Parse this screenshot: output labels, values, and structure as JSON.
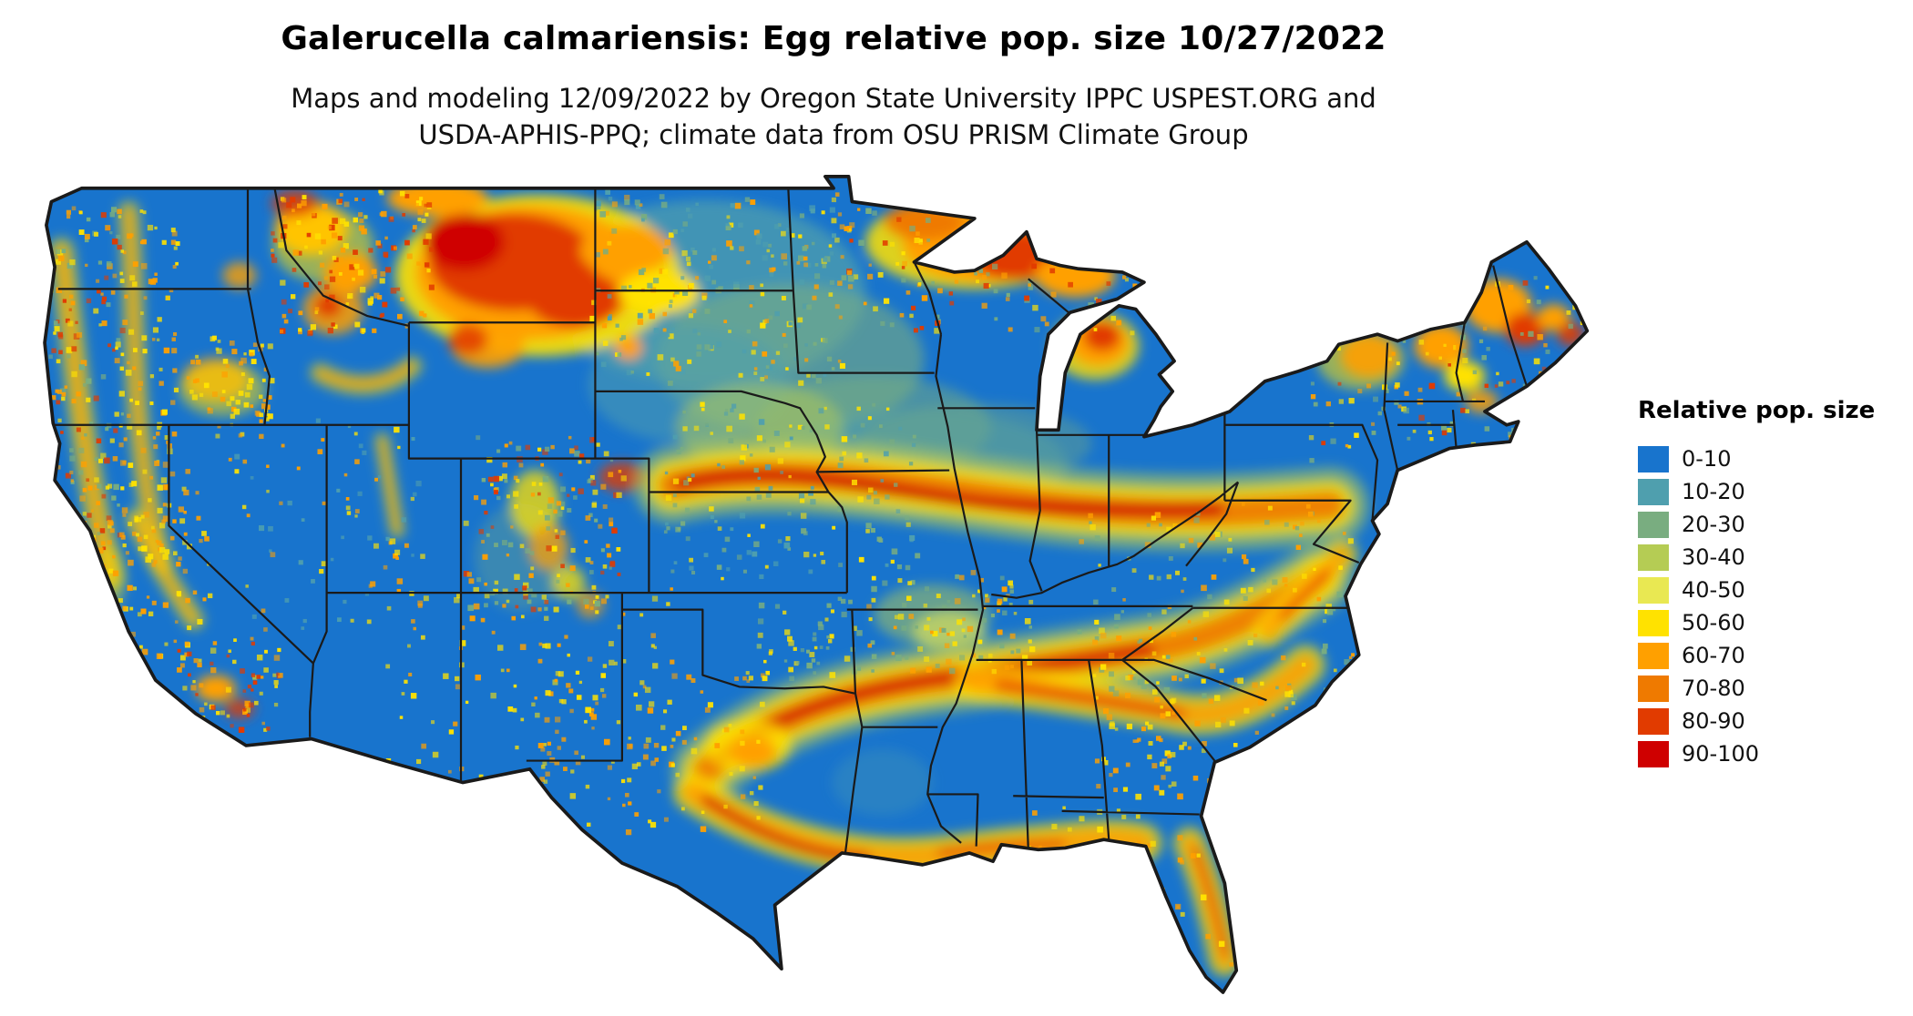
{
  "header": {
    "title": "Galerucella calmariensis: Egg relative pop. size 10/27/2022",
    "subtitle_line1": "Maps and modeling 12/09/2022 by Oregon State University IPPC USPEST.ORG and",
    "subtitle_line2": "USDA-APHIS-PPQ; climate data from OSU PRISM Climate Group"
  },
  "legend": {
    "title": "Relative pop. size",
    "items": [
      {
        "label": "0-10",
        "color": "#1874CD"
      },
      {
        "label": "10-20",
        "color": "#4F9FAE"
      },
      {
        "label": "20-30",
        "color": "#79AD80"
      },
      {
        "label": "30-40",
        "color": "#B5CC54"
      },
      {
        "label": "40-50",
        "color": "#E9E852"
      },
      {
        "label": "50-60",
        "color": "#FFE200"
      },
      {
        "label": "60-70",
        "color": "#FFA000"
      },
      {
        "label": "70-80",
        "color": "#EF7A00"
      },
      {
        "label": "80-90",
        "color": "#E13B00"
      },
      {
        "label": "90-100",
        "color": "#CF0000"
      }
    ]
  },
  "map": {
    "base_color": "#1874CD",
    "state_border_color": "#1a1a1a"
  }
}
